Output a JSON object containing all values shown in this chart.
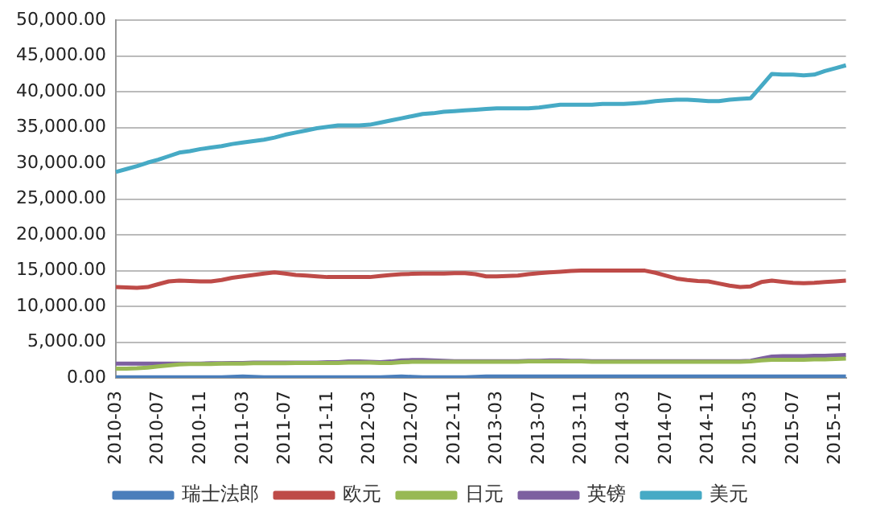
{
  "chart_data": {
    "type": "line",
    "categories": [
      "2010-03",
      null,
      null,
      null,
      "2010-07",
      null,
      null,
      null,
      "2010-11",
      null,
      null,
      null,
      "2011-03",
      null,
      null,
      null,
      "2011-07",
      null,
      null,
      null,
      "2011-11",
      null,
      null,
      null,
      "2012-03",
      null,
      null,
      null,
      "2012-07",
      null,
      null,
      null,
      "2012-11",
      null,
      null,
      null,
      "2013-03",
      null,
      null,
      null,
      "2013-07",
      null,
      null,
      null,
      "2013-11",
      null,
      null,
      null,
      "2014-03",
      null,
      null,
      null,
      "2014-07",
      null,
      null,
      null,
      "2014-11",
      null,
      null,
      null,
      "2015-03",
      null,
      null,
      null,
      "2015-07",
      null,
      null,
      null,
      "2015-11",
      null
    ],
    "ylim": [
      0,
      50000
    ],
    "yticks": [
      {
        "value": 0,
        "label": "0.00"
      },
      {
        "value": 5000,
        "label": "5,000.00"
      },
      {
        "value": 10000,
        "label": "10,000.00"
      },
      {
        "value": 15000,
        "label": "15,000.00"
      },
      {
        "value": 20000,
        "label": "20,000.00"
      },
      {
        "value": 25000,
        "label": "25,000.00"
      },
      {
        "value": 30000,
        "label": "30,000.00"
      },
      {
        "value": 35000,
        "label": "35,000.00"
      },
      {
        "value": 40000,
        "label": "40,000.00"
      },
      {
        "value": 45000,
        "label": "45,000.00"
      },
      {
        "value": 50000,
        "label": "50,000.00"
      }
    ],
    "grid": "y",
    "legend": "bottom",
    "marker": "none",
    "line_style": "solid",
    "series": [
      {
        "name": "瑞士法郎",
        "color": "#4a7ebb",
        "values": [
          100,
          100,
          100,
          100,
          100,
          100,
          100,
          100,
          100,
          100,
          100,
          150,
          200,
          150,
          100,
          100,
          100,
          100,
          100,
          100,
          100,
          100,
          100,
          100,
          100,
          100,
          150,
          200,
          150,
          100,
          100,
          100,
          100,
          100,
          150,
          200,
          200,
          200,
          200,
          200,
          200,
          200,
          200,
          200,
          200,
          200,
          200,
          200,
          200,
          200,
          200,
          200,
          200,
          200,
          200,
          200,
          200,
          200,
          200,
          200,
          200,
          200,
          200,
          200,
          200,
          200,
          200,
          200,
          200,
          200
        ]
      },
      {
        "name": "欧元",
        "color": "#be4b48",
        "values": [
          12700,
          12650,
          12600,
          12700,
          13100,
          13500,
          13600,
          13550,
          13500,
          13500,
          13700,
          14000,
          14200,
          14400,
          14600,
          14750,
          14600,
          14400,
          14300,
          14200,
          14100,
          14100,
          14100,
          14100,
          14100,
          14250,
          14400,
          14500,
          14550,
          14600,
          14600,
          14600,
          14650,
          14650,
          14500,
          14200,
          14200,
          14250,
          14300,
          14500,
          14650,
          14750,
          14850,
          14950,
          15000,
          15000,
          15000,
          15000,
          15000,
          15000,
          15000,
          14700,
          14300,
          13900,
          13700,
          13550,
          13500,
          13200,
          12900,
          12700,
          12800,
          13400,
          13600,
          13450,
          13300,
          13250,
          13300,
          13400,
          13500,
          13600
        ]
      },
      {
        "name": "日元",
        "color": "#98b954",
        "values": [
          1300,
          1300,
          1350,
          1450,
          1600,
          1750,
          1900,
          1950,
          1950,
          1950,
          2000,
          2000,
          2000,
          2050,
          2050,
          2050,
          2050,
          2100,
          2100,
          2100,
          2100,
          2100,
          2150,
          2150,
          2150,
          2100,
          2100,
          2200,
          2250,
          2250,
          2250,
          2250,
          2250,
          2250,
          2250,
          2250,
          2250,
          2250,
          2250,
          2300,
          2300,
          2300,
          2300,
          2300,
          2300,
          2250,
          2250,
          2250,
          2250,
          2250,
          2250,
          2250,
          2250,
          2250,
          2250,
          2250,
          2250,
          2250,
          2250,
          2250,
          2300,
          2450,
          2550,
          2550,
          2550,
          2550,
          2600,
          2600,
          2650,
          2700
        ]
      },
      {
        "name": "英镑",
        "color": "#7d60a0",
        "values": [
          2000,
          2000,
          2000,
          2000,
          2000,
          2000,
          2000,
          2000,
          2000,
          2050,
          2050,
          2100,
          2100,
          2150,
          2150,
          2150,
          2150,
          2150,
          2150,
          2150,
          2200,
          2200,
          2300,
          2300,
          2250,
          2200,
          2300,
          2450,
          2500,
          2500,
          2450,
          2400,
          2350,
          2350,
          2350,
          2350,
          2350,
          2350,
          2350,
          2400,
          2400,
          2450,
          2450,
          2400,
          2400,
          2350,
          2350,
          2350,
          2350,
          2350,
          2350,
          2350,
          2350,
          2350,
          2350,
          2350,
          2350,
          2350,
          2350,
          2350,
          2400,
          2700,
          3000,
          3050,
          3050,
          3050,
          3100,
          3100,
          3150,
          3200
        ]
      },
      {
        "name": "美元",
        "color": "#46aac5",
        "values": [
          28800,
          29200,
          29600,
          30100,
          30500,
          31000,
          31500,
          31700,
          32000,
          32200,
          32400,
          32700,
          32900,
          33100,
          33300,
          33600,
          34000,
          34300,
          34600,
          34900,
          35100,
          35300,
          35300,
          35300,
          35400,
          35700,
          36000,
          36300,
          36600,
          36900,
          37000,
          37200,
          37300,
          37400,
          37500,
          37600,
          37700,
          37700,
          37700,
          37700,
          37800,
          38000,
          38200,
          38200,
          38200,
          38200,
          38300,
          38300,
          38300,
          38400,
          38500,
          38700,
          38800,
          38900,
          38900,
          38800,
          38700,
          38700,
          38900,
          39000,
          39100,
          40800,
          42500,
          42400,
          42400,
          42300,
          42400,
          42900,
          43300,
          43700
        ]
      }
    ]
  }
}
